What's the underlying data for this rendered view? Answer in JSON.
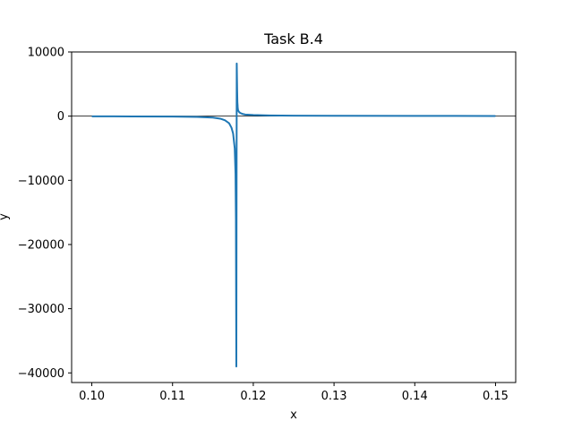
{
  "chart_data": {
    "type": "line",
    "title": "Task B.4",
    "xlabel": "x",
    "ylabel": "y",
    "xlim": [
      0.0975,
      0.1525
    ],
    "ylim": [
      -41500,
      10000
    ],
    "x_ticks": [
      {
        "value": 0.1,
        "label": "0.10"
      },
      {
        "value": 0.11,
        "label": "0.11"
      },
      {
        "value": 0.12,
        "label": "0.12"
      },
      {
        "value": 0.13,
        "label": "0.13"
      },
      {
        "value": 0.14,
        "label": "0.14"
      },
      {
        "value": 0.15,
        "label": "0.15"
      }
    ],
    "y_ticks": [
      {
        "value": 10000,
        "label": "10000"
      },
      {
        "value": 0,
        "label": "0"
      },
      {
        "value": -10000,
        "label": "−10000"
      },
      {
        "value": -20000,
        "label": "−20000"
      },
      {
        "value": -30000,
        "label": "−30000"
      },
      {
        "value": -40000,
        "label": "−40000"
      }
    ],
    "hline": 0,
    "grid": false,
    "series": [
      {
        "color": "#1f77b4",
        "x": [
          0.1,
          0.105,
          0.11,
          0.113,
          0.115,
          0.116,
          0.1165,
          0.117,
          0.1173,
          0.1175,
          0.1177,
          0.1178,
          0.11785,
          0.1179,
          0.11795,
          0.118,
          0.11803,
          0.11807,
          0.1181,
          0.1182,
          0.1184,
          0.1187,
          0.119,
          0.12,
          0.122,
          0.125,
          0.13,
          0.14,
          0.15
        ],
        "y": [
          -25,
          -40,
          -70,
          -120,
          -230,
          -420,
          -650,
          -1100,
          -1800,
          -2700,
          -5000,
          -9000,
          -16000,
          -39000,
          8200,
          4000,
          2200,
          1400,
          1000,
          700,
          480,
          330,
          250,
          170,
          110,
          80,
          55,
          35,
          25
        ]
      }
    ]
  }
}
